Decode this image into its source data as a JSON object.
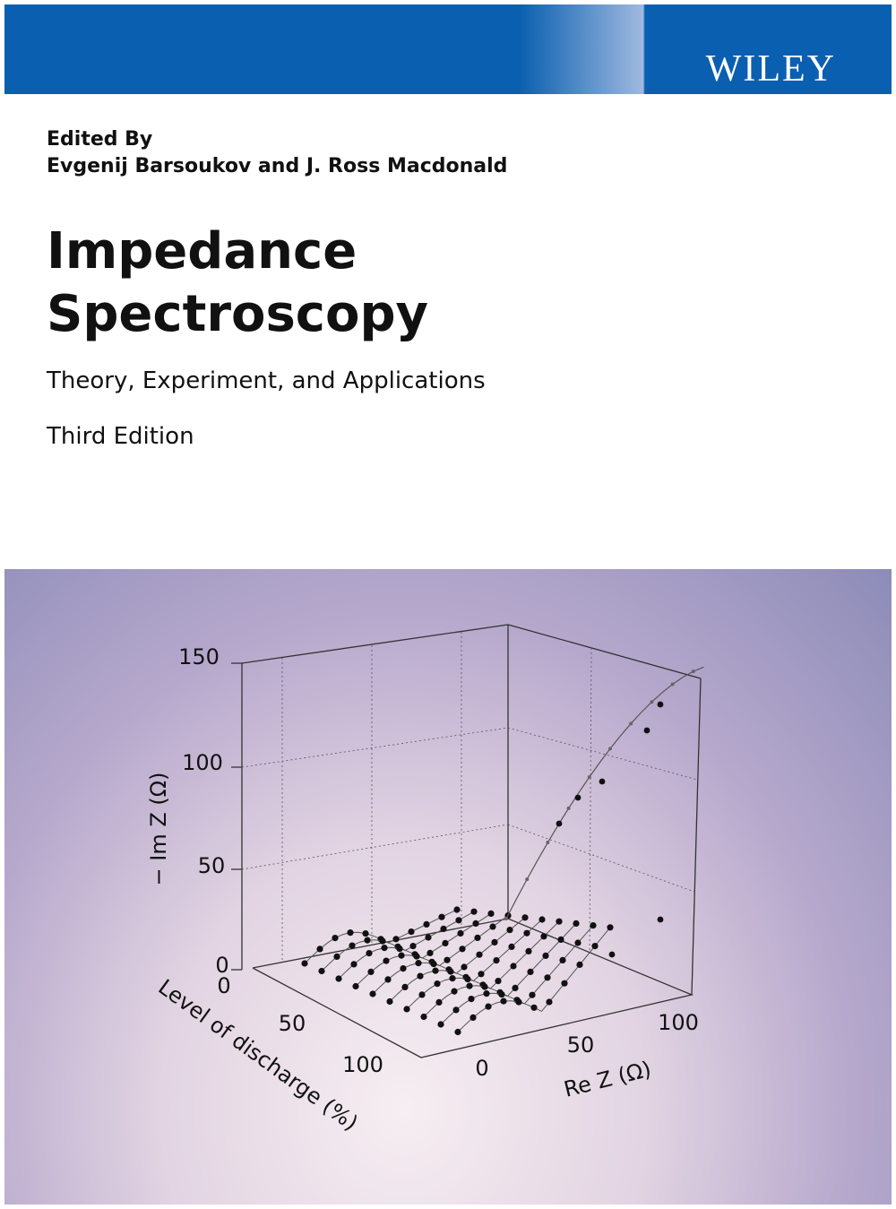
{
  "header": {
    "publisher": "WILEY"
  },
  "cover": {
    "editors_label": "Edited By",
    "editors": "Evgenij Barsoukov and J. Ross Macdonald",
    "title_line1": "Impedance",
    "title_line2": "Spectroscopy",
    "subtitle": "Theory, Experiment, and Applications",
    "edition": "Third Edition"
  },
  "cover_art": {
    "y_axis_title": "− Im Z (Ω)",
    "y_ticks": [
      "150",
      "100",
      "50",
      "0"
    ],
    "depth_axis_title": "Level of discharge (%)",
    "depth_ticks": [
      "0",
      "50",
      "100"
    ],
    "x_axis_title": "Re Z (Ω)",
    "x_ticks": [
      "0",
      "50",
      "100"
    ]
  }
}
